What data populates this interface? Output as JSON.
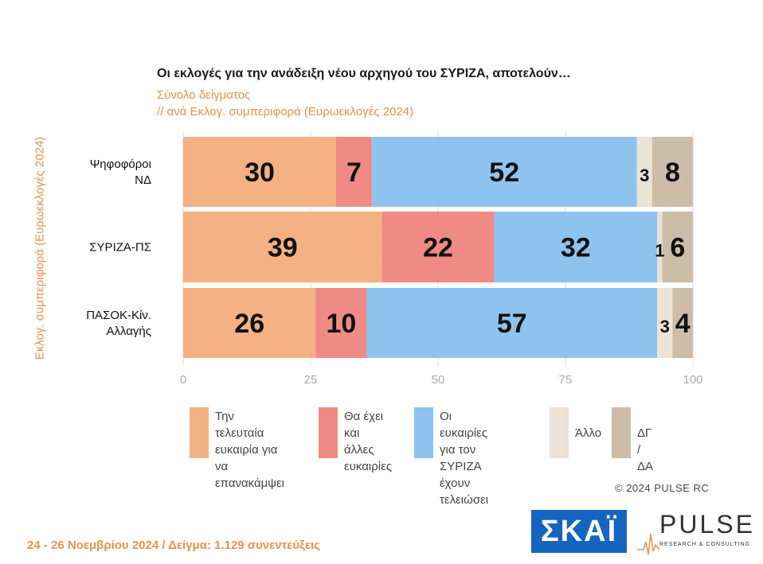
{
  "chart_data": {
    "type": "bar",
    "orientation": "horizontal",
    "stacked": true,
    "title": "Οι εκλογές για την ανάδειξη νέου αρχηγού του ΣΥΡΙΖΑ, αποτελούν…",
    "subtitle_1": "Σύνολο δείγματος",
    "subtitle_2": " // ανά Εκλογ. συμπεριφορά (Ευρωεκλογές 2024)",
    "ylabel": "Εκλογ. συμπεριφορά (Ευρωεκλογές 2024)",
    "categories": [
      "Ψηφοφόροι ΝΔ",
      "ΣΥΡΙΖΑ-ΠΣ",
      "ΠΑΣΟΚ-Κίν. Αλλαγής"
    ],
    "category_lines": [
      [
        "Ψηφοφόροι",
        "ΝΔ"
      ],
      [
        "ΣΥΡΙΖΑ-ΠΣ"
      ],
      [
        "ΠΑΣΟΚ-Κίν.",
        "Αλλαγής"
      ]
    ],
    "series": [
      {
        "name": "Την τελευταία ευκαιρία για να επανακάμψει",
        "color": "#f4b183",
        "values": [
          30,
          39,
          26
        ],
        "labels": [
          "30",
          "39",
          "26"
        ]
      },
      {
        "name": "Θα έχει και άλλες ευκαιρίες",
        "color": "#f08a84",
        "values": [
          7,
          22,
          10
        ],
        "labels": [
          "7",
          "22",
          "10"
        ]
      },
      {
        "name": "Οι ευκαιρίες για τον ΣΥΡΙΖΑ έχουν τελειώσει",
        "color": "#8ec3f0",
        "values": [
          52,
          32,
          57
        ],
        "labels": [
          "52",
          "32",
          "57"
        ]
      },
      {
        "name": "Άλλο",
        "color": "#ebe3d6",
        "values": [
          3,
          1,
          3
        ],
        "labels": [
          "3",
          "1",
          "3"
        ]
      },
      {
        "name": "ΔΓ / ΔΑ",
        "color": "#cdbca7",
        "values": [
          8,
          6,
          4
        ],
        "labels": [
          "8",
          "6",
          "4"
        ]
      }
    ],
    "xlim": [
      0,
      100
    ],
    "xticks": [
      "0",
      "25",
      "50",
      "75",
      "100"
    ],
    "grid": true
  },
  "legend": [
    {
      "text": "Την τελευταία\nευκαιρία για να\nεπανακάμψει",
      "color": "#f4b183"
    },
    {
      "text": "Θα έχει\nκαι άλλες\nευκαιρίες",
      "color": "#f08a84"
    },
    {
      "text": "Οι ευκαιρίες\nγια τον ΣΥΡΙΖΑ\nέχουν τελειώσει",
      "color": "#8ec3f0"
    },
    {
      "text": "Άλλο",
      "color": "#ebe3d6"
    },
    {
      "text": "ΔΓ / ΔΑ",
      "color": "#cdbca7"
    }
  ],
  "copyright": "© 2024 PULSE RC",
  "footer": "24 - 26 Νοεμβρίου 2024  /  Δείγμα:  1.129 συνεντεύξεις",
  "logos": {
    "skai": "ΣΚΑΪ",
    "pulse": "PULSE",
    "pulse_sub": "RESEARCH & CONSULTING",
    "watermark": "PULSE",
    "watermark_sub": "RESEARCH & CONSULTING"
  }
}
